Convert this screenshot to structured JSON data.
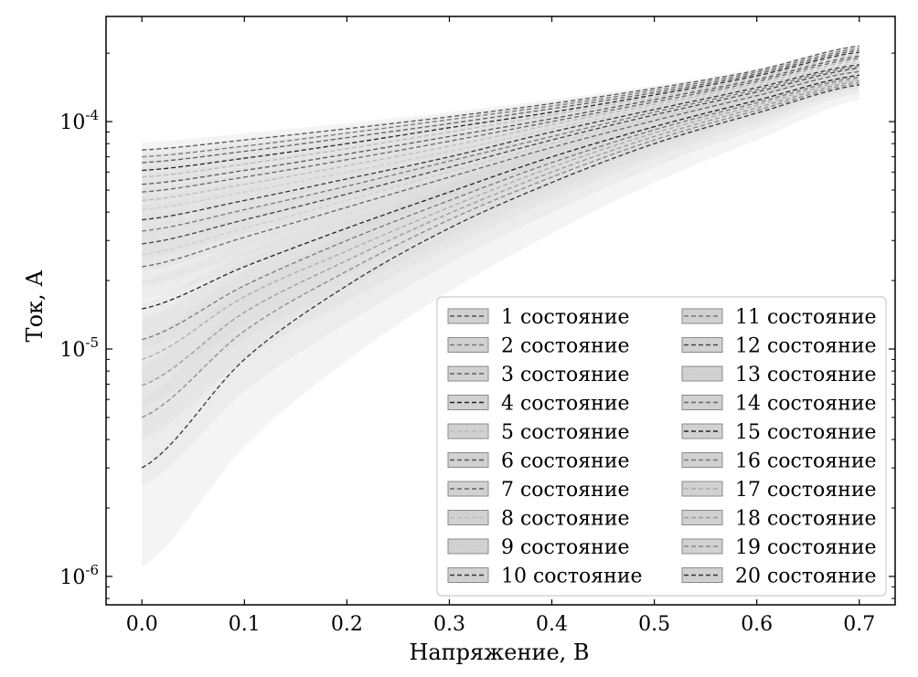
{
  "chart_data": {
    "type": "line",
    "title": "",
    "xlabel": "Напряжение, В",
    "ylabel": "Ток, А",
    "xlim": [
      -0.035,
      0.735
    ],
    "ylim": [
      7.5e-07,
      0.00029
    ],
    "yscale": "log",
    "x_ticks": [
      {
        "value": 0.0,
        "label": "0.0"
      },
      {
        "value": 0.1,
        "label": "0.1"
      },
      {
        "value": 0.2,
        "label": "0.2"
      },
      {
        "value": 0.3,
        "label": "0.3"
      },
      {
        "value": 0.4,
        "label": "0.4"
      },
      {
        "value": 0.5,
        "label": "0.5"
      },
      {
        "value": 0.6,
        "label": "0.6"
      },
      {
        "value": 0.7,
        "label": "0.7"
      }
    ],
    "y_ticks": [
      {
        "value": 1e-06,
        "base": "10",
        "exp": "-6"
      },
      {
        "value": 1e-05,
        "base": "10",
        "exp": "-5"
      },
      {
        "value": 0.0001,
        "base": "10",
        "exp": "-4"
      }
    ],
    "x": [
      0.0,
      0.1,
      0.2,
      0.3,
      0.4,
      0.5,
      0.6,
      0.7
    ],
    "legend_position": "lower-right",
    "legend_columns": 2,
    "series": [
      {
        "name": "1 состояние",
        "color": "#555555",
        "values": [
          7.5e-05,
          8.3e-05,
          9.3e-05,
          0.000105,
          0.00012,
          0.00014,
          0.000168,
          0.000215
        ],
        "band": [
          6.5e-05,
          8.1e-05
        ]
      },
      {
        "name": "2 состояние",
        "color": "#777777",
        "values": [
          7e-05,
          7.8e-05,
          8.9e-05,
          0.000102,
          0.000117,
          0.000137,
          0.000165,
          0.00021
        ],
        "band": [
          6e-05,
          7.6e-05
        ]
      },
      {
        "name": "3 состояние",
        "color": "#606060",
        "values": [
          6.6e-05,
          7.4e-05,
          8.5e-05,
          9.8e-05,
          0.000114,
          0.000134,
          0.000162,
          0.000206
        ],
        "band": [
          5.6e-05,
          7.2e-05
        ]
      },
      {
        "name": "4 состояние",
        "color": "#222222",
        "values": [
          6.1e-05,
          6.9e-05,
          8e-05,
          9.4e-05,
          0.00011,
          0.000131,
          0.000159,
          0.000202
        ],
        "band": [
          5.2e-05,
          6.7e-05
        ]
      },
      {
        "name": "5 состояние",
        "color": "#bbbbbb",
        "values": [
          5.7e-05,
          6.5e-05,
          7.6e-05,
          9e-05,
          0.000107,
          0.000128,
          0.000156,
          0.000198
        ],
        "band": [
          4.8e-05,
          6.3e-05
        ]
      },
      {
        "name": "6 состояние",
        "color": "#555555",
        "values": [
          5.3e-05,
          6.1e-05,
          7.2e-05,
          8.6e-05,
          0.000103,
          0.000125,
          0.000153,
          0.000194
        ],
        "band": [
          4.4e-05,
          5.9e-05
        ]
      },
      {
        "name": "7 состояние",
        "color": "#666666",
        "values": [
          4.9e-05,
          5.7e-05,
          6.8e-05,
          8.2e-05,
          0.0001,
          0.000122,
          0.00015,
          0.00019
        ],
        "band": [
          4e-05,
          5.5e-05
        ]
      },
      {
        "name": "8 состояние",
        "color": "#bbbbbb",
        "values": [
          4.5e-05,
          5.3e-05,
          6.4e-05,
          7.8e-05,
          9.7e-05,
          0.000119,
          0.000147,
          0.000186
        ],
        "band": [
          3.6e-05,
          5.1e-05
        ]
      },
      {
        "name": "9 состояние",
        "color": "#cccccc",
        "values": [
          4.1e-05,
          4.9e-05,
          6e-05,
          7.4e-05,
          9.3e-05,
          0.000116,
          0.000144,
          0.000182
        ],
        "band": [
          3.2e-05,
          4.7e-05
        ]
      },
      {
        "name": "10 состояние",
        "color": "#333333",
        "values": [
          3.7e-05,
          4.5e-05,
          5.6e-05,
          7e-05,
          9e-05,
          0.000113,
          0.000141,
          0.000178
        ],
        "band": [
          2.9e-05,
          4.3e-05
        ]
      },
      {
        "name": "11 состояние",
        "color": "#777777",
        "values": [
          3.3e-05,
          4.1e-05,
          5.2e-05,
          6.7e-05,
          8.6e-05,
          0.00011,
          0.000138,
          0.000175
        ],
        "band": [
          2.5e-05,
          3.9e-05
        ]
      },
      {
        "name": "12 состояние",
        "color": "#444444",
        "values": [
          2.9e-05,
          3.7e-05,
          4.8e-05,
          6.3e-05,
          8.3e-05,
          0.000107,
          0.000135,
          0.000172
        ],
        "band": [
          2.2e-05,
          3.5e-05
        ]
      },
      {
        "name": "13 состояние",
        "color": "#cccccc",
        "values": [
          2.6e-05,
          3.4e-05,
          4.5e-05,
          6e-05,
          8e-05,
          0.000104,
          0.000132,
          0.000169
        ],
        "band": [
          1.9e-05,
          3.2e-05
        ]
      },
      {
        "name": "14 состояние",
        "color": "#666666",
        "values": [
          2.3e-05,
          3.1e-05,
          4.2e-05,
          5.7e-05,
          7.7e-05,
          0.000101,
          0.00013,
          0.000166
        ],
        "band": [
          1.65e-05,
          2.9e-05
        ]
      },
      {
        "name": "15 состояние",
        "color": "#222222",
        "values": [
          1.5e-05,
          2.3e-05,
          3.4e-05,
          4.9e-05,
          7e-05,
          9.5e-05,
          0.000124,
          0.00016
        ],
        "band": [
          1e-05,
          2e-05
        ]
      },
      {
        "name": "16 состояние",
        "color": "#777777",
        "values": [
          1.1e-05,
          1.9e-05,
          3e-05,
          4.5e-05,
          6.6e-05,
          9.2e-05,
          0.000121,
          0.000157
        ],
        "band": [
          7e-06,
          1.6e-05
        ]
      },
      {
        "name": "17 состояние",
        "color": "#aaaaaa",
        "values": [
          9e-06,
          1.7e-05,
          2.7e-05,
          4.2e-05,
          6.3e-05,
          8.9e-05,
          0.000118,
          0.000154
        ],
        "band": [
          5.5e-06,
          1.35e-05
        ]
      },
      {
        "name": "18 состояние",
        "color": "#999999",
        "values": [
          6.9e-06,
          1.45e-05,
          2.45e-05,
          3.95e-05,
          6e-05,
          8.6e-05,
          0.000115,
          0.000151
        ],
        "band": [
          4e-06,
          1.1e-05
        ]
      },
      {
        "name": "19 состояние",
        "color": "#888888",
        "values": [
          5e-06,
          1.2e-05,
          2.2e-05,
          3.7e-05,
          5.7e-05,
          8.3e-05,
          0.000112,
          0.000148
        ],
        "band": [
          2.5e-06,
          8.5e-06
        ]
      },
      {
        "name": "20 состояние",
        "color": "#333333",
        "values": [
          3e-06,
          9e-06,
          1.9e-05,
          3.4e-05,
          5.4e-05,
          8e-05,
          0.000109,
          0.000145
        ],
        "band": [
          1.1e-06,
          6e-06
        ]
      }
    ]
  }
}
